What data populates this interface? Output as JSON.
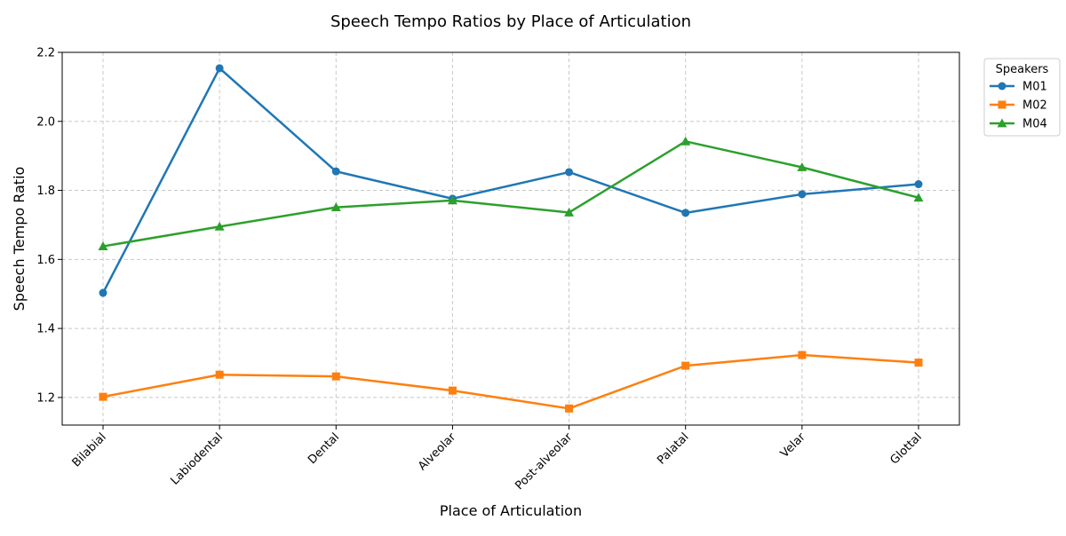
{
  "chart_data": {
    "type": "line",
    "title": "Speech Tempo Ratios by Place of Articulation",
    "xlabel": "Place of Articulation",
    "ylabel": "Speech Tempo Ratio",
    "categories": [
      "Bilabial",
      "Labiodental",
      "Dental",
      "Alveolar",
      "Post-alveolar",
      "Palatal",
      "Velar",
      "Glottal"
    ],
    "ylim": [
      1.12,
      2.2
    ],
    "yticks": [
      "1.2",
      "1.4",
      "1.6",
      "1.8",
      "2.0",
      "2.2"
    ],
    "grid": true,
    "legend": {
      "title": "Speakers",
      "placement": "outside-top-right"
    },
    "series": [
      {
        "name": "M01",
        "color": "#1f77b4",
        "marker": "circle",
        "values": [
          1.503,
          2.154,
          1.855,
          1.776,
          1.853,
          1.735,
          1.789,
          1.818
        ]
      },
      {
        "name": "M02",
        "color": "#ff7f0e",
        "marker": "square",
        "values": [
          1.202,
          1.266,
          1.261,
          1.22,
          1.168,
          1.292,
          1.323,
          1.301
        ]
      },
      {
        "name": "M04",
        "color": "#2ca02c",
        "marker": "triangle",
        "values": [
          1.638,
          1.695,
          1.751,
          1.771,
          1.736,
          1.942,
          1.867,
          1.779
        ]
      }
    ]
  }
}
